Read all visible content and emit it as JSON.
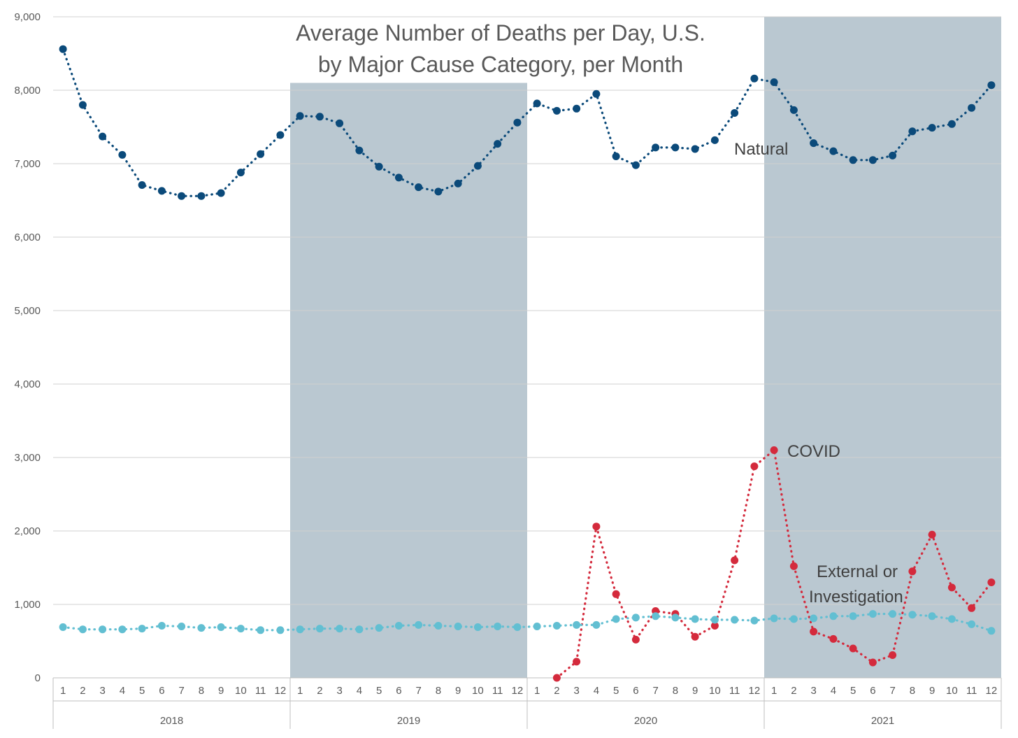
{
  "chart_data": {
    "type": "line",
    "title_lines": [
      "Average Number of Deaths per Day, U.S.",
      "by Major Cause Category, per Month"
    ],
    "xlabel": "",
    "ylabel": "",
    "ylim": [
      0,
      9000
    ],
    "yticks": [
      0,
      1000,
      2000,
      3000,
      4000,
      5000,
      6000,
      7000,
      8000,
      9000
    ],
    "ytick_labels": [
      "0",
      "1,000",
      "2,000",
      "3,000",
      "4,000",
      "5,000",
      "6,000",
      "7,000",
      "8,000",
      "9,000"
    ],
    "months": [
      "1",
      "2",
      "3",
      "4",
      "5",
      "6",
      "7",
      "8",
      "9",
      "10",
      "11",
      "12"
    ],
    "years": [
      "2018",
      "2019",
      "2020",
      "2021"
    ],
    "shaded_years": [
      "2019",
      "2021"
    ],
    "grid": "horizontal",
    "legend": "none",
    "series": [
      {
        "name": "Natural",
        "color": "#0b4a7a",
        "start_index": 0,
        "values": [
          8560,
          7800,
          7370,
          7120,
          6710,
          6630,
          6560,
          6560,
          6600,
          6880,
          7130,
          7390,
          7650,
          7640,
          7550,
          7180,
          6960,
          6810,
          6680,
          6620,
          6730,
          6970,
          7270,
          7560,
          7820,
          7720,
          7750,
          7950,
          7100,
          6980,
          7220,
          7220,
          7200,
          7320,
          7690,
          8160,
          8110,
          7730,
          7280,
          7170,
          7050,
          7050,
          7110,
          7440,
          7490,
          7540,
          7760,
          8070
        ]
      },
      {
        "name": "COVID",
        "color": "#d42a3c",
        "start_index": 25,
        "values": [
          0,
          220,
          2060,
          1140,
          520,
          910,
          870,
          560,
          710,
          1600,
          2880,
          3100,
          1520,
          630,
          530,
          400,
          210,
          310,
          1450,
          1950,
          1230,
          950,
          1300
        ]
      },
      {
        "name": "External or Investigation",
        "color": "#62bfd2",
        "start_index": 0,
        "values": [
          690,
          660,
          660,
          660,
          670,
          710,
          700,
          680,
          690,
          670,
          650,
          650,
          660,
          670,
          670,
          660,
          680,
          710,
          720,
          710,
          700,
          690,
          700,
          690,
          700,
          710,
          720,
          720,
          800,
          820,
          840,
          820,
          800,
          790,
          790,
          780,
          810,
          800,
          810,
          840,
          840,
          870,
          870,
          860,
          840,
          800,
          730,
          640
        ]
      }
    ],
    "annotations": [
      {
        "text": "Natural",
        "series": "Natural"
      },
      {
        "text": "COVID",
        "series": "COVID"
      },
      {
        "text_lines": [
          "External or",
          "Investigation"
        ],
        "series": "External or Investigation"
      }
    ]
  }
}
